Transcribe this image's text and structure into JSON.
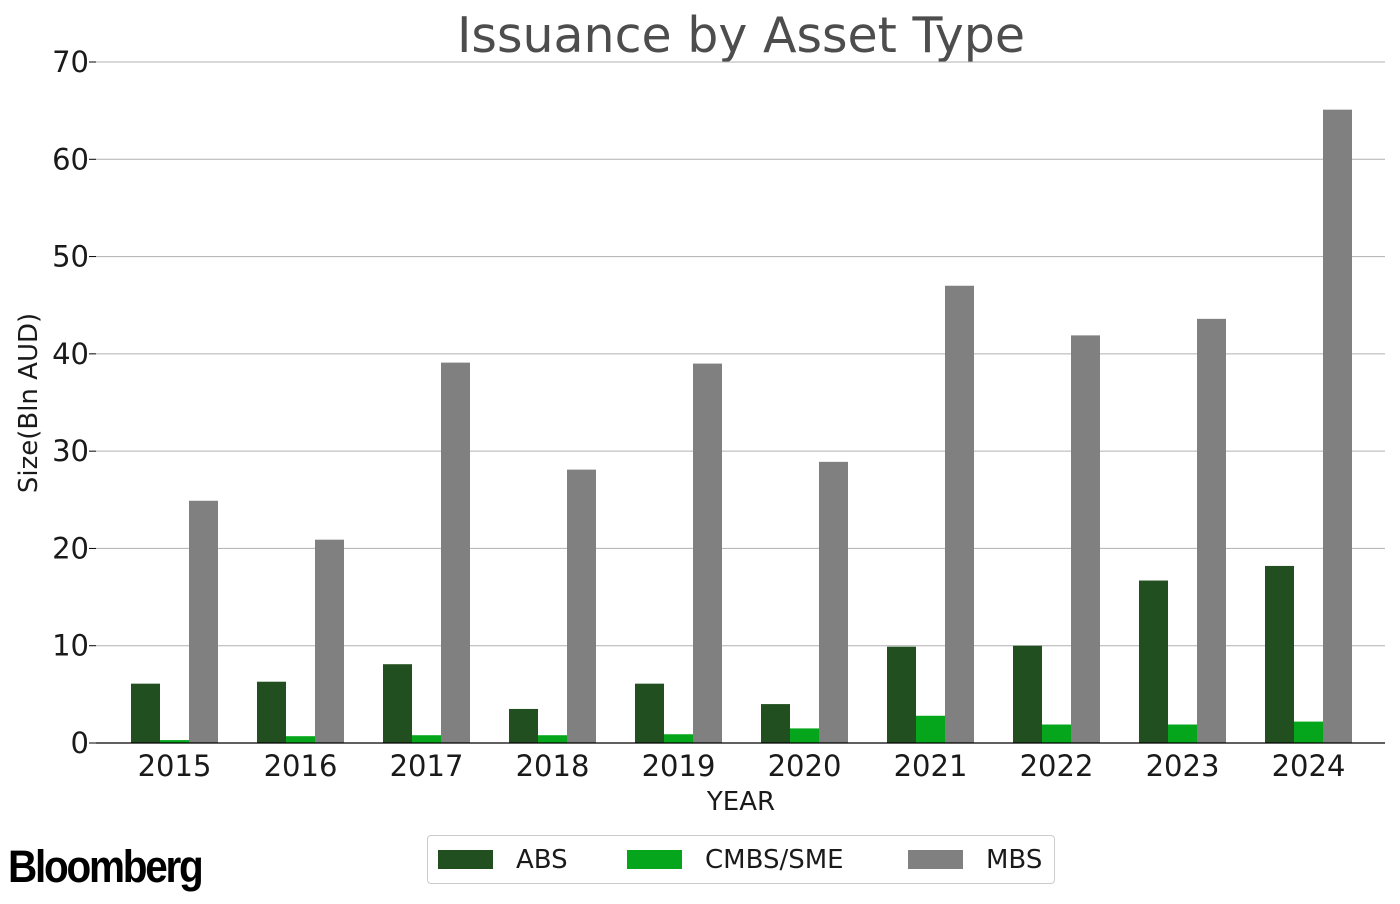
{
  "chart_data": {
    "type": "bar",
    "title": "Issuance by Asset Type",
    "xlabel": "YEAR",
    "ylabel": "Size(Bln AUD)",
    "ylim": [
      0,
      70
    ],
    "yticks": [
      0,
      10,
      20,
      30,
      40,
      50,
      60,
      70
    ],
    "grid": true,
    "legend_position": "bottom-center",
    "categories": [
      "2015",
      "2016",
      "2017",
      "2018",
      "2019",
      "2020",
      "2021",
      "2022",
      "2023",
      "2024"
    ],
    "series": [
      {
        "name": "ABS",
        "color": "#224f20",
        "values": [
          6.1,
          6.3,
          8.1,
          3.5,
          6.1,
          4.0,
          9.9,
          10.0,
          16.7,
          18.2
        ]
      },
      {
        "name": "CMBS/SME",
        "color": "#05a61b",
        "values": [
          0.3,
          0.7,
          0.8,
          0.8,
          0.9,
          1.5,
          2.8,
          1.9,
          1.9,
          2.2
        ]
      },
      {
        "name": "MBS",
        "color": "#808080",
        "values": [
          24.9,
          20.9,
          39.1,
          28.1,
          39.0,
          28.9,
          47.0,
          41.9,
          43.6,
          65.1
        ]
      }
    ]
  },
  "colors": {
    "title": "#4d4d4d",
    "grid": "#b0b0b0",
    "axis": "#000000",
    "text": "#1a1a1a"
  },
  "branding": {
    "logo_text": "Bloomberg"
  }
}
